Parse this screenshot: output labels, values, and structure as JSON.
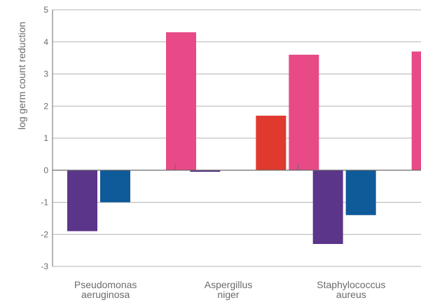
{
  "chart_data": {
    "type": "bar",
    "title": "",
    "xlabel": "",
    "ylabel": "log germ count reduction",
    "ylim": [
      -3,
      5
    ],
    "yticks": [
      "5",
      "4",
      "3",
      "2",
      "1",
      "0",
      "-1",
      "-2",
      "-3"
    ],
    "grid": true,
    "legend": "none",
    "categories": [
      [
        "Pseudomonas",
        "aeruginosa"
      ],
      [
        "Aspergillus",
        "niger"
      ],
      [
        "Staphylococcus",
        "aureus"
      ]
    ],
    "series": [
      {
        "color": "#5b3589",
        "values": [
          -1.9,
          -0.05,
          -2.3
        ]
      },
      {
        "color": "#0f5a99",
        "values": [
          -1.0,
          null,
          -1.4
        ]
      },
      {
        "color": "#e03a2f",
        "values": [
          null,
          1.7,
          null
        ]
      },
      {
        "color": "#e74a86",
        "values": [
          4.3,
          3.6,
          3.7
        ]
      }
    ]
  },
  "colors": {
    "grid": "#9a9a9a",
    "axis": "#6b6b6b",
    "text": "#6b6b6b"
  }
}
